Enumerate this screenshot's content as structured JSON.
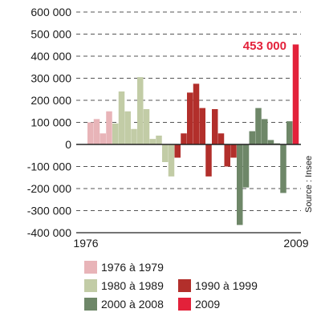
{
  "chart_data": {
    "type": "bar",
    "x_start_label": "1976",
    "x_end_label": "2009",
    "ylim": [
      -400000,
      600000
    ],
    "yticks": [
      600000,
      500000,
      400000,
      300000,
      200000,
      100000,
      0,
      -100000,
      -200000,
      -300000,
      -400000
    ],
    "ytick_labels": [
      "600 000",
      "500 000",
      "400 000",
      "300 000",
      "200 000",
      "100 000",
      "0",
      "-100 000",
      "-200 000",
      "-300 000",
      "-400 000"
    ],
    "grid": "horizontal dashed",
    "source": "Source : Insee",
    "annotation": {
      "text": "453 000",
      "year": "2009",
      "color": "#e3213a"
    },
    "series": [
      {
        "name": "1976 à 1979",
        "color": "#e8b4b8",
        "years": [
          "1976",
          "1977",
          "1978",
          "1979"
        ],
        "values": [
          100000,
          115000,
          50000,
          150000
        ]
      },
      {
        "name": "1980 à 1989",
        "color": "#c2cca6",
        "years": [
          "1980",
          "1981",
          "1982",
          "1983",
          "1984",
          "1985",
          "1986",
          "1987",
          "1988",
          "1989"
        ],
        "values": [
          95000,
          240000,
          150000,
          70000,
          305000,
          160000,
          25000,
          40000,
          -80000,
          -145000
        ]
      },
      {
        "name": "1990 à 1999",
        "color": "#b22f2b",
        "years": [
          "1990",
          "1991",
          "1992",
          "1993",
          "1994",
          "1995",
          "1996",
          "1997",
          "1998",
          "1999"
        ],
        "values": [
          -60000,
          50000,
          235000,
          275000,
          165000,
          -145000,
          160000,
          50000,
          -100000,
          -60000
        ]
      },
      {
        "name": "2000 à 2008",
        "color": "#6e8768",
        "years": [
          "2000",
          "2001",
          "2002",
          "2003",
          "2004",
          "2005",
          "2006",
          "2007",
          "2008"
        ],
        "values": [
          -365000,
          -195000,
          60000,
          165000,
          115000,
          20000,
          5000,
          -220000,
          105000
        ]
      },
      {
        "name": "2009",
        "color": "#e3213a",
        "years": [
          "2009"
        ],
        "values": [
          453000
        ]
      }
    ]
  }
}
